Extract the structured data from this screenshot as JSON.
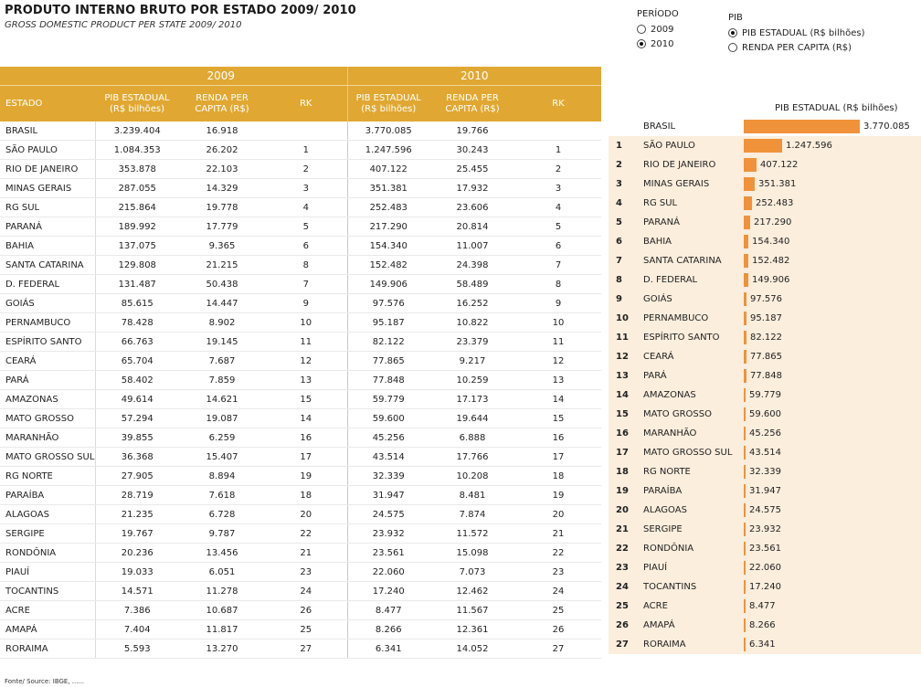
{
  "header": {
    "title": "PRODUTO INTERNO BRUTO POR ESTADO 2009/ 2010",
    "subtitle": "GROSS DOMESTIC PRODUCT  PER STATE 2009/ 2010"
  },
  "periodo": {
    "label": "PERÍODO",
    "options": [
      {
        "label": "2009",
        "selected": false
      },
      {
        "label": "2010",
        "selected": true
      }
    ]
  },
  "pib": {
    "label": "PIB",
    "options": [
      {
        "label": "PIB ESTADUAL (R$ bilhões)",
        "selected": true
      },
      {
        "label": "RENDA PER CAPITA (R$)",
        "selected": false
      }
    ]
  },
  "table": {
    "year1": "2009",
    "year2": "2010",
    "col_estado": "ESTADO",
    "col_pib": "PIB ESTADUAL (R$ bilhões)",
    "col_renda": "RENDA PER CAPITA (R$)",
    "col_rk": "RK",
    "rows": [
      [
        "BRASIL",
        "3.239.404",
        "16.918",
        "",
        "3.770.085",
        "19.766",
        ""
      ],
      [
        "SÃO PAULO",
        "1.084.353",
        "26.202",
        "1",
        "1.247.596",
        "30.243",
        "1"
      ],
      [
        "RIO DE JANEIRO",
        "353.878",
        "22.103",
        "2",
        "407.122",
        "25.455",
        "2"
      ],
      [
        "MINAS GERAIS",
        "287.055",
        "14.329",
        "3",
        "351.381",
        "17.932",
        "3"
      ],
      [
        "RG SUL",
        "215.864",
        "19.778",
        "4",
        "252.483",
        "23.606",
        "4"
      ],
      [
        "PARANÁ",
        "189.992",
        "17.779",
        "5",
        "217.290",
        "20.814",
        "5"
      ],
      [
        "BAHIA",
        "137.075",
        "9.365",
        "6",
        "154.340",
        "11.007",
        "6"
      ],
      [
        "SANTA CATARINA",
        "129.808",
        "21.215",
        "8",
        "152.482",
        "24.398",
        "7"
      ],
      [
        "D. FEDERAL",
        "131.487",
        "50.438",
        "7",
        "149.906",
        "58.489",
        "8"
      ],
      [
        "GOIÁS",
        "85.615",
        "14.447",
        "9",
        "97.576",
        "16.252",
        "9"
      ],
      [
        "PERNAMBUCO",
        "78.428",
        "8.902",
        "10",
        "95.187",
        "10.822",
        "10"
      ],
      [
        "ESPÍRITO SANTO",
        "66.763",
        "19.145",
        "11",
        "82.122",
        "23.379",
        "11"
      ],
      [
        "CEARÁ",
        "65.704",
        "7.687",
        "12",
        "77.865",
        "9.217",
        "12"
      ],
      [
        "PARÁ",
        "58.402",
        "7.859",
        "13",
        "77.848",
        "10.259",
        "13"
      ],
      [
        "AMAZONAS",
        "49.614",
        "14.621",
        "15",
        "59.779",
        "17.173",
        "14"
      ],
      [
        "MATO GROSSO",
        "57.294",
        "19.087",
        "14",
        "59.600",
        "19.644",
        "15"
      ],
      [
        "MARANHÃO",
        "39.855",
        "6.259",
        "16",
        "45.256",
        "6.888",
        "16"
      ],
      [
        "MATO GROSSO SUL",
        "36.368",
        "15.407",
        "17",
        "43.514",
        "17.766",
        "17"
      ],
      [
        "RG NORTE",
        "27.905",
        "8.894",
        "19",
        "32.339",
        "10.208",
        "18"
      ],
      [
        "PARAÍBA",
        "28.719",
        "7.618",
        "18",
        "31.947",
        "8.481",
        "19"
      ],
      [
        "ALAGOAS",
        "21.235",
        "6.728",
        "20",
        "24.575",
        "7.874",
        "20"
      ],
      [
        "SERGIPE",
        "19.767",
        "9.787",
        "22",
        "23.932",
        "11.572",
        "21"
      ],
      [
        "RONDÔNIA",
        "20.236",
        "13.456",
        "21",
        "23.561",
        "15.098",
        "22"
      ],
      [
        "PIAUÍ",
        "19.033",
        "6.051",
        "23",
        "22.060",
        "7.073",
        "23"
      ],
      [
        "TOCANTINS",
        "14.571",
        "11.278",
        "24",
        "17.240",
        "12.462",
        "24"
      ],
      [
        "ACRE",
        "7.386",
        "10.687",
        "26",
        "8.477",
        "11.567",
        "25"
      ],
      [
        "AMAPÁ",
        "7.404",
        "11.817",
        "25",
        "8.266",
        "12.361",
        "26"
      ],
      [
        "RORAIMA",
        "5.593",
        "13.270",
        "27",
        "6.341",
        "14.052",
        "27"
      ]
    ]
  },
  "chart_data": {
    "type": "bar",
    "title": "PIB ESTADUAL (R$ bilhões)",
    "bar_color": "#f0923a",
    "highlight_color": "#fbeedd",
    "categories": [
      "BRASIL",
      "SÃO PAULO",
      "RIO DE JANEIRO",
      "MINAS GERAIS",
      "RG SUL",
      "PARANÁ",
      "BAHIA",
      "SANTA CATARINA",
      "D. FEDERAL",
      "GOIÁS",
      "PERNAMBUCO",
      "ESPÍRITO SANTO",
      "CEARÁ",
      "PARÁ",
      "AMAZONAS",
      "MATO GROSSO",
      "MARANHÃO",
      "MATO GROSSO SUL",
      "RG NORTE",
      "PARAÍBA",
      "ALAGOAS",
      "SERGIPE",
      "RONDÔNIA",
      "PIAUÍ",
      "TOCANTINS",
      "ACRE",
      "AMAPÁ",
      "RORAIMA"
    ],
    "ranks": [
      "",
      "1",
      "2",
      "3",
      "4",
      "5",
      "6",
      "7",
      "8",
      "9",
      "10",
      "11",
      "12",
      "13",
      "14",
      "15",
      "16",
      "17",
      "18",
      "19",
      "20",
      "21",
      "22",
      "23",
      "24",
      "25",
      "26",
      "27"
    ],
    "values": [
      3770085,
      1247596,
      407122,
      351381,
      252483,
      217290,
      154340,
      152482,
      149906,
      97576,
      95187,
      82122,
      77865,
      77848,
      59779,
      59600,
      45256,
      43514,
      32339,
      31947,
      24575,
      23932,
      23561,
      22060,
      17240,
      8477,
      8266,
      6341
    ],
    "value_labels": [
      "3.770.085",
      "1.247.596",
      "407.122",
      "351.381",
      "252.483",
      "217.290",
      "154.340",
      "152.482",
      "149.906",
      "97.576",
      "95.187",
      "82.122",
      "77.865",
      "77.848",
      "59.779",
      "59.600",
      "45.256",
      "43.514",
      "32.339",
      "31.947",
      "24.575",
      "23.932",
      "23.561",
      "22.060",
      "17.240",
      "8.477",
      "8.266",
      "6.341"
    ]
  },
  "footer": "Fonte/ Source: IBGE, ......"
}
